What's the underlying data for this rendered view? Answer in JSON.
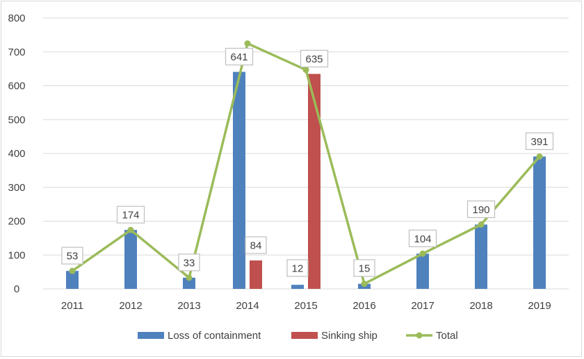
{
  "chart_data": {
    "type": "bar",
    "categories": [
      "2011",
      "2012",
      "2013",
      "2014",
      "2015",
      "2016",
      "2017",
      "2018",
      "2019"
    ],
    "series": [
      {
        "name": "Loss of containment",
        "kind": "bar",
        "color": "#4f81bd",
        "values": [
          53,
          174,
          33,
          641,
          12,
          15,
          104,
          190,
          391
        ]
      },
      {
        "name": "Sinking ship",
        "kind": "bar",
        "color": "#c0504d",
        "values": [
          null,
          null,
          null,
          84,
          635,
          null,
          null,
          null,
          null
        ]
      },
      {
        "name": "Total",
        "kind": "line",
        "color": "#9bbb59",
        "values": [
          53,
          174,
          33,
          725,
          647,
          15,
          104,
          190,
          391
        ]
      }
    ],
    "data_labels": [
      {
        "category": "2011",
        "text": "53"
      },
      {
        "category": "2012",
        "text": "174"
      },
      {
        "category": "2013",
        "text": "33"
      },
      {
        "category": "2014",
        "text": "641"
      },
      {
        "category": "2014",
        "text": "84"
      },
      {
        "category": "2015",
        "text": "12"
      },
      {
        "category": "2015",
        "text": "635"
      },
      {
        "category": "2016",
        "text": "15"
      },
      {
        "category": "2017",
        "text": "104"
      },
      {
        "category": "2018",
        "text": "190"
      },
      {
        "category": "2019",
        "text": "391"
      }
    ],
    "y_ticks": [
      "0",
      "100",
      "200",
      "300",
      "400",
      "500",
      "600",
      "700",
      "800"
    ],
    "ylim": [
      0,
      800
    ],
    "title": "",
    "xlabel": "",
    "ylabel": "",
    "grid": true,
    "legend_position": "bottom"
  }
}
